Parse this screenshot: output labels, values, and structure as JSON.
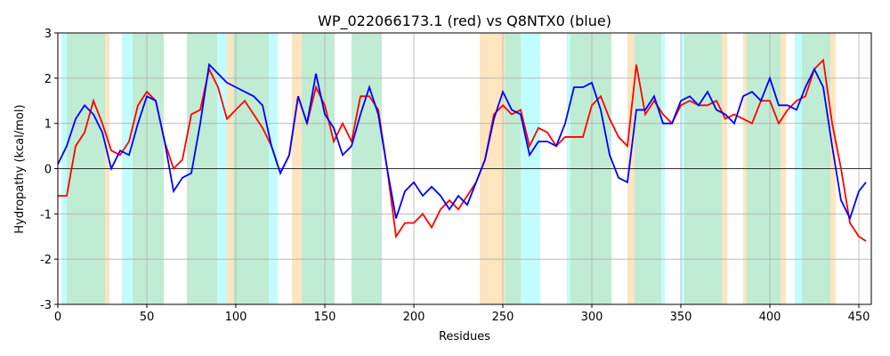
{
  "chart_data": {
    "type": "line",
    "title": "WP_022066173.1 (red) vs Q8NTX0 (blue)",
    "x_label": "Residues",
    "y_label": "Hydropathy (kcal/mol)",
    "xlim": [
      0,
      457
    ],
    "ylim": [
      -3,
      3
    ],
    "xticks": [
      0,
      50,
      100,
      150,
      200,
      250,
      300,
      350,
      400,
      450
    ],
    "yticks": [
      -3,
      -2,
      -1,
      0,
      1,
      2,
      3
    ],
    "grid": true,
    "spans": [
      {
        "start": 2,
        "end": 5,
        "color": "#c2fdfd"
      },
      {
        "start": 5,
        "end": 26.5,
        "color": "#c0ecd3"
      },
      {
        "start": 26.5,
        "end": 29,
        "color": "#fde5c0"
      },
      {
        "start": 36,
        "end": 42,
        "color": "#c2fdfd"
      },
      {
        "start": 42,
        "end": 59.5,
        "color": "#c0ecd3"
      },
      {
        "start": 72.5,
        "end": 89.5,
        "color": "#c0ecd3"
      },
      {
        "start": 89.5,
        "end": 95,
        "color": "#c2fdfd"
      },
      {
        "start": 95,
        "end": 98.5,
        "color": "#fde5c0"
      },
      {
        "start": 98.5,
        "end": 118.5,
        "color": "#c0ecd3"
      },
      {
        "start": 118.5,
        "end": 123.5,
        "color": "#c2fdfd"
      },
      {
        "start": 131.5,
        "end": 137,
        "color": "#fde5c0"
      },
      {
        "start": 137,
        "end": 155.5,
        "color": "#c0ecd3"
      },
      {
        "start": 165,
        "end": 182,
        "color": "#c0ecd3"
      },
      {
        "start": 237,
        "end": 251,
        "color": "#fde5c0"
      },
      {
        "start": 251,
        "end": 260,
        "color": "#c0ecd3"
      },
      {
        "start": 260,
        "end": 271,
        "color": "#c2fdfd"
      },
      {
        "start": 286,
        "end": 288,
        "color": "#c2fdfd"
      },
      {
        "start": 288,
        "end": 311,
        "color": "#c0ecd3"
      },
      {
        "start": 320,
        "end": 324,
        "color": "#fde5c0"
      },
      {
        "start": 324,
        "end": 339,
        "color": "#c0ecd3"
      },
      {
        "start": 339,
        "end": 341,
        "color": "#c2fdfd"
      },
      {
        "start": 350,
        "end": 352,
        "color": "#c2fdfd"
      },
      {
        "start": 352,
        "end": 373,
        "color": "#c0ecd3"
      },
      {
        "start": 373,
        "end": 376,
        "color": "#fde5c0"
      },
      {
        "start": 385,
        "end": 387,
        "color": "#fde5c0"
      },
      {
        "start": 387,
        "end": 406,
        "color": "#c0ecd3"
      },
      {
        "start": 406,
        "end": 409,
        "color": "#fde5c0"
      },
      {
        "start": 414,
        "end": 418,
        "color": "#c2fdfd"
      },
      {
        "start": 418,
        "end": 434,
        "color": "#c0ecd3"
      },
      {
        "start": 434,
        "end": 437,
        "color": "#fde5c0"
      }
    ],
    "x": [
      0,
      5,
      10,
      15,
      20,
      25,
      30,
      35,
      40,
      45,
      50,
      55,
      60,
      65,
      70,
      75,
      80,
      85,
      90,
      95,
      100,
      105,
      110,
      115,
      120,
      125,
      130,
      135,
      140,
      145,
      150,
      155,
      160,
      165,
      170,
      175,
      180,
      185,
      190,
      195,
      200,
      205,
      210,
      215,
      220,
      225,
      230,
      235,
      240,
      245,
      250,
      255,
      260,
      265,
      270,
      275,
      280,
      285,
      290,
      295,
      300,
      305,
      310,
      315,
      320,
      325,
      330,
      335,
      340,
      345,
      350,
      355,
      360,
      365,
      370,
      375,
      380,
      385,
      390,
      395,
      400,
      405,
      410,
      415,
      420,
      425,
      430,
      435,
      440,
      445,
      450,
      454
    ],
    "series": [
      {
        "color": "red",
        "values": [
          -0.6,
          -0.6,
          0.5,
          0.8,
          1.5,
          1.0,
          0.4,
          0.3,
          0.6,
          1.4,
          1.7,
          1.5,
          0.6,
          0.0,
          0.2,
          1.2,
          1.3,
          2.2,
          1.8,
          1.1,
          1.3,
          1.5,
          1.2,
          0.9,
          0.5,
          -0.1,
          0.3,
          1.6,
          1.0,
          1.8,
          1.4,
          0.6,
          1.0,
          0.6,
          1.6,
          1.6,
          1.3,
          0.0,
          -1.5,
          -1.2,
          -1.2,
          -1.0,
          -1.3,
          -0.9,
          -0.7,
          -0.9,
          -0.6,
          -0.3,
          0.2,
          1.2,
          1.4,
          1.2,
          1.3,
          0.5,
          0.9,
          0.8,
          0.5,
          0.7,
          0.7,
          0.7,
          1.4,
          1.6,
          1.1,
          0.7,
          0.5,
          2.3,
          1.2,
          1.5,
          1.2,
          1.0,
          1.4,
          1.5,
          1.4,
          1.4,
          1.5,
          1.1,
          1.2,
          1.1,
          1.0,
          1.5,
          1.5,
          1.0,
          1.3,
          1.5,
          1.6,
          2.2,
          2.4,
          1.0,
          0.0,
          -1.2,
          -1.5,
          -1.6
        ]
      },
      {
        "color": "blue",
        "values": [
          0.1,
          0.5,
          1.1,
          1.4,
          1.2,
          0.8,
          0.0,
          0.4,
          0.3,
          1.0,
          1.6,
          1.5,
          0.6,
          -0.5,
          -0.2,
          -0.1,
          1.0,
          2.3,
          2.1,
          1.9,
          1.8,
          1.7,
          1.6,
          1.4,
          0.5,
          -0.1,
          0.3,
          1.6,
          1.0,
          2.1,
          1.2,
          0.9,
          0.3,
          0.5,
          1.2,
          1.8,
          1.2,
          0.0,
          -1.1,
          -0.5,
          -0.3,
          -0.6,
          -0.4,
          -0.6,
          -0.9,
          -0.6,
          -0.8,
          -0.3,
          0.2,
          1.1,
          1.7,
          1.3,
          1.2,
          0.3,
          0.6,
          0.6,
          0.5,
          1.0,
          1.8,
          1.8,
          1.9,
          1.3,
          0.3,
          -0.2,
          -0.3,
          1.3,
          1.3,
          1.6,
          1.0,
          1.0,
          1.5,
          1.6,
          1.4,
          1.7,
          1.3,
          1.2,
          1.0,
          1.6,
          1.7,
          1.5,
          2.0,
          1.4,
          1.4,
          1.3,
          1.8,
          2.2,
          1.8,
          0.5,
          -0.7,
          -1.1,
          -0.5,
          -0.3
        ]
      }
    ]
  }
}
